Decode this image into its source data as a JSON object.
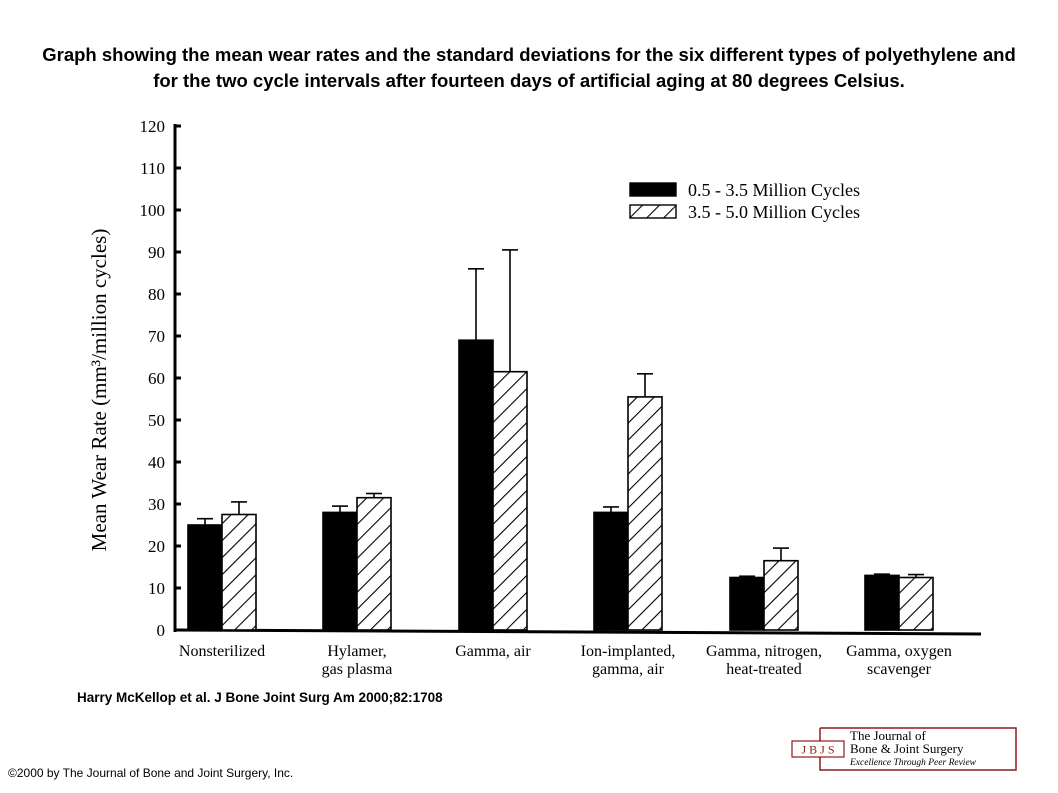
{
  "title": "Graph showing the mean wear rates and the standard deviations for the six different types of polyethylene and for the two cycle intervals after fourteen days of artificial aging at 80 degrees Celsius.",
  "citation": "Harry McKellop et al. J Bone Joint Surg Am 2000;82:1708",
  "copyright": "©2000 by The Journal of Bone and Joint Surgery, Inc.",
  "logo": {
    "abbr": "J B J S",
    "line1": "The Journal of",
    "line2": "Bone & Joint Surgery",
    "line3": "Excellence Through Peer Review",
    "color": "#8b1c1c"
  },
  "chart_data": {
    "type": "bar",
    "title": "",
    "xlabel": "",
    "ylabel": "Mean Wear Rate (mm³/million cycles)",
    "ylim": [
      0,
      120
    ],
    "yticks": [
      0,
      10,
      20,
      30,
      40,
      50,
      60,
      70,
      80,
      90,
      100,
      110,
      120
    ],
    "grid": false,
    "legend_position": "top-right",
    "categories": [
      [
        "Nonsterilized"
      ],
      [
        "Hylamer,",
        "gas plasma"
      ],
      [
        "Gamma, air"
      ],
      [
        "Ion-implanted,",
        "gamma, air"
      ],
      [
        "Gamma, nitrogen,",
        "heat-treated"
      ],
      [
        "Gamma, oxygen",
        "scavenger"
      ]
    ],
    "series": [
      {
        "name": "0.5 - 3.5 Million Cycles",
        "fill": "solid",
        "values": [
          25,
          28,
          69,
          28,
          12.5,
          13
        ],
        "errors": [
          1.5,
          1.5,
          17,
          1.3,
          0.3,
          0.3
        ]
      },
      {
        "name": "3.5 - 5.0 Million Cycles",
        "fill": "hatched",
        "values": [
          27.5,
          31.5,
          61.5,
          55.5,
          16.5,
          12.5
        ],
        "errors": [
          3,
          1,
          29,
          5.5,
          3,
          0.7
        ]
      }
    ]
  }
}
